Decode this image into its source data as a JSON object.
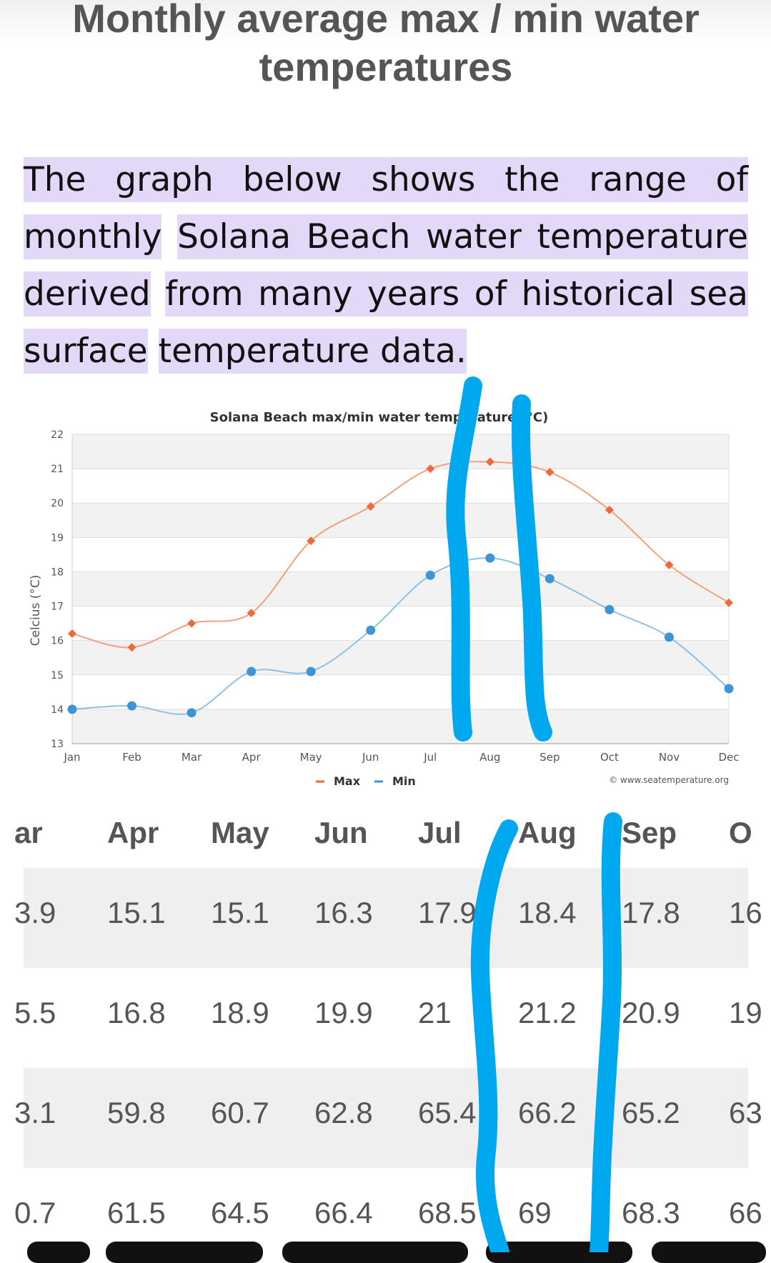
{
  "header": {
    "title": "Monthly average max / min water temperatures"
  },
  "intro": {
    "lines": [
      "The graph below shows the range of monthly",
      "Solana Beach water temperature derived",
      "from many years of historical sea surface",
      "temperature data."
    ]
  },
  "chart_data": {
    "type": "line",
    "title": "Solana Beach max/min water temperature (°C)",
    "ylabel": "Celcius (°C)",
    "xlabel": "",
    "categories": [
      "Jan",
      "Feb",
      "Mar",
      "Apr",
      "May",
      "Jun",
      "Jul",
      "Aug",
      "Sep",
      "Oct",
      "Nov",
      "Dec"
    ],
    "ylim": [
      13,
      22
    ],
    "yticks": [
      13,
      14,
      15,
      16,
      17,
      18,
      19,
      20,
      21,
      22
    ],
    "series": [
      {
        "name": "Max",
        "color": "#ee6a3a",
        "marker": "diamond",
        "values": [
          16.2,
          15.8,
          16.5,
          16.8,
          18.9,
          19.9,
          21.0,
          21.2,
          20.9,
          19.8,
          18.2,
          17.1
        ]
      },
      {
        "name": "Min",
        "color": "#3f94d4",
        "marker": "circle",
        "values": [
          14.0,
          14.1,
          13.9,
          15.1,
          15.1,
          16.3,
          17.9,
          18.4,
          17.8,
          16.9,
          16.1,
          14.6
        ]
      }
    ],
    "credit": "© www.seatemperature.org",
    "legend": "bottom-center",
    "grid": true
  },
  "table": {
    "headers": [
      "ar",
      "Apr",
      "May",
      "Jun",
      "Jul",
      "Aug",
      "Sep",
      "O"
    ],
    "rows": [
      [
        "3.9",
        "15.1",
        "15.1",
        "16.3",
        "17.9",
        "18.4",
        "17.8",
        "16"
      ],
      [
        "5.5",
        "16.8",
        "18.9",
        "19.9",
        "21",
        "21.2",
        "20.9",
        "19"
      ],
      [
        "3.1",
        "59.8",
        "60.7",
        "62.8",
        "65.4",
        "66.2",
        "65.2",
        "63"
      ],
      [
        "0.7",
        "61.5",
        "64.5",
        "66.4",
        "68.5",
        "69",
        "68.3",
        "66"
      ]
    ]
  },
  "colors": {
    "highlight": "#e4d8f8",
    "annotation": "#00a8f0"
  }
}
